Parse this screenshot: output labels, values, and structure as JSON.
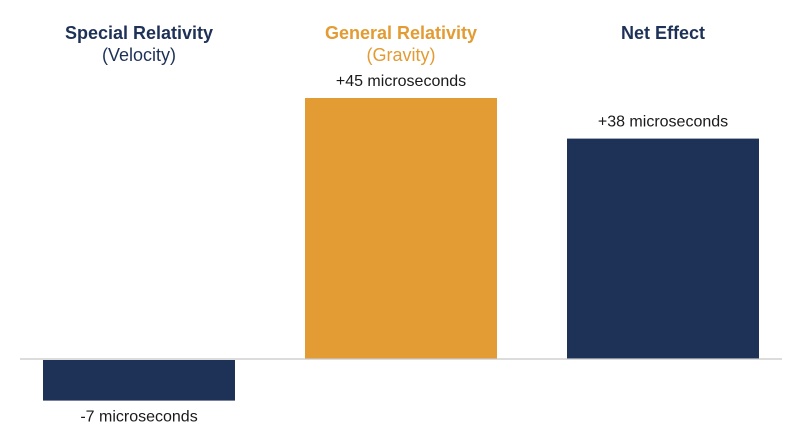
{
  "colors": {
    "navy": "#1e3157",
    "gold": "#e39b33",
    "axis": "#c8c8c8"
  },
  "chart_data": {
    "type": "bar",
    "categories": [
      {
        "title": "Special Relativity",
        "subtitle": "(Velocity)",
        "color": "#1e3157",
        "title_color": "#1e3157",
        "subtitle_color": "#1e3157"
      },
      {
        "title": "General Relativity",
        "subtitle": "(Gravity)",
        "color": "#e39b33",
        "title_color": "#e39b33",
        "subtitle_color": "#e39b33"
      },
      {
        "title": "Net Effect",
        "subtitle": "",
        "color": "#1e3157",
        "title_color": "#1e3157",
        "subtitle_color": "#1e3157"
      }
    ],
    "values": [
      -7,
      45,
      38
    ],
    "value_labels": [
      "-7 microseconds",
      "+45 microseconds",
      "+38 microseconds"
    ],
    "unit": "microseconds",
    "ylim": [
      -7,
      45
    ],
    "grid": false,
    "legend": "none"
  }
}
